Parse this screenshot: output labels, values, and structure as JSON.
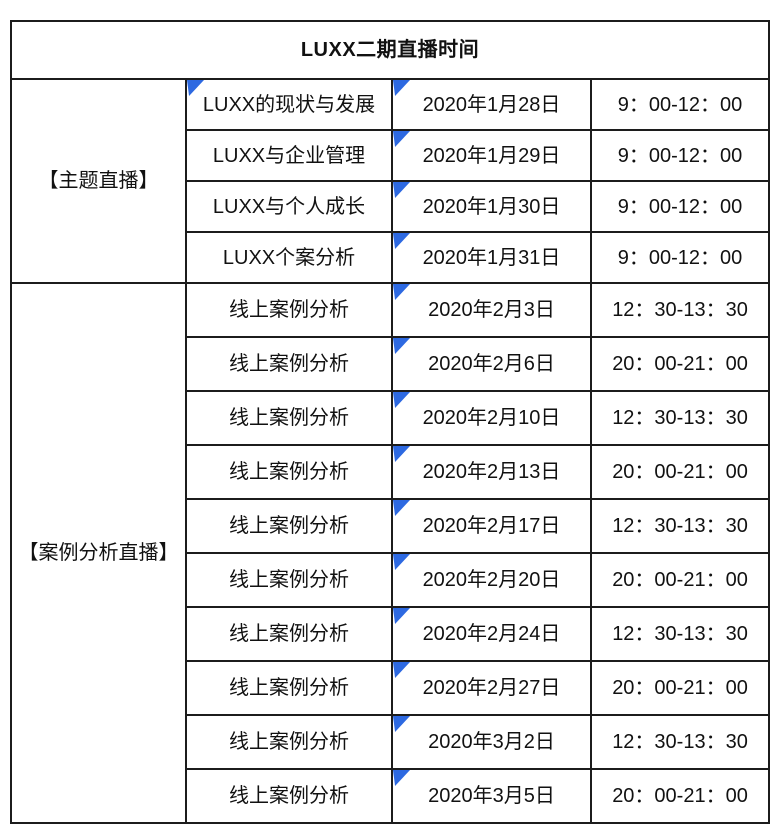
{
  "title": "LUXX二期直播时间",
  "colors": {
    "header_bg": "#F4C24A",
    "border": "#1c1c1c",
    "marker_blue": "#2D69E1",
    "text": "#111111",
    "page_bg": "#ffffff"
  },
  "icons": {
    "comment_marker": "blue-corner-triangle"
  },
  "sections": [
    {
      "label": "【主题直播】",
      "rows": [
        {
          "topic": "LUXX的现状与发展",
          "topic_marker": true,
          "date": "2020年1月28日",
          "date_marker": true,
          "time": "9：00-12：00"
        },
        {
          "topic": "LUXX与企业管理",
          "topic_marker": false,
          "date": "2020年1月29日",
          "date_marker": true,
          "time": "9：00-12：00"
        },
        {
          "topic": "LUXX与个人成长",
          "topic_marker": false,
          "date": "2020年1月30日",
          "date_marker": true,
          "time": "9：00-12：00"
        },
        {
          "topic": "LUXX个案分析",
          "topic_marker": false,
          "date": "2020年1月31日",
          "date_marker": true,
          "time": "9：00-12：00"
        }
      ]
    },
    {
      "label": "【案例分析直播】",
      "rows": [
        {
          "topic": "线上案例分析",
          "topic_marker": false,
          "date": "2020年2月3日",
          "date_marker": true,
          "time": "12：30-13：30"
        },
        {
          "topic": "线上案例分析",
          "topic_marker": false,
          "date": "2020年2月6日",
          "date_marker": true,
          "time": "20：00-21：00"
        },
        {
          "topic": "线上案例分析",
          "topic_marker": false,
          "date": "2020年2月10日",
          "date_marker": true,
          "time": "12：30-13：30"
        },
        {
          "topic": "线上案例分析",
          "topic_marker": false,
          "date": "2020年2月13日",
          "date_marker": true,
          "time": "20：00-21：00"
        },
        {
          "topic": "线上案例分析",
          "topic_marker": false,
          "date": "2020年2月17日",
          "date_marker": true,
          "time": "12：30-13：30"
        },
        {
          "topic": "线上案例分析",
          "topic_marker": false,
          "date": "2020年2月20日",
          "date_marker": true,
          "time": "20：00-21：00"
        },
        {
          "topic": "线上案例分析",
          "topic_marker": false,
          "date": "2020年2月24日",
          "date_marker": true,
          "time": "12：30-13：30"
        },
        {
          "topic": "线上案例分析",
          "topic_marker": false,
          "date": "2020年2月27日",
          "date_marker": true,
          "time": "20：00-21：00"
        },
        {
          "topic": "线上案例分析",
          "topic_marker": false,
          "date": "2020年3月2日",
          "date_marker": true,
          "time": "12：30-13：30"
        },
        {
          "topic": "线上案例分析",
          "topic_marker": false,
          "date": "2020年3月5日",
          "date_marker": true,
          "time": "20：00-21：00"
        }
      ]
    }
  ]
}
